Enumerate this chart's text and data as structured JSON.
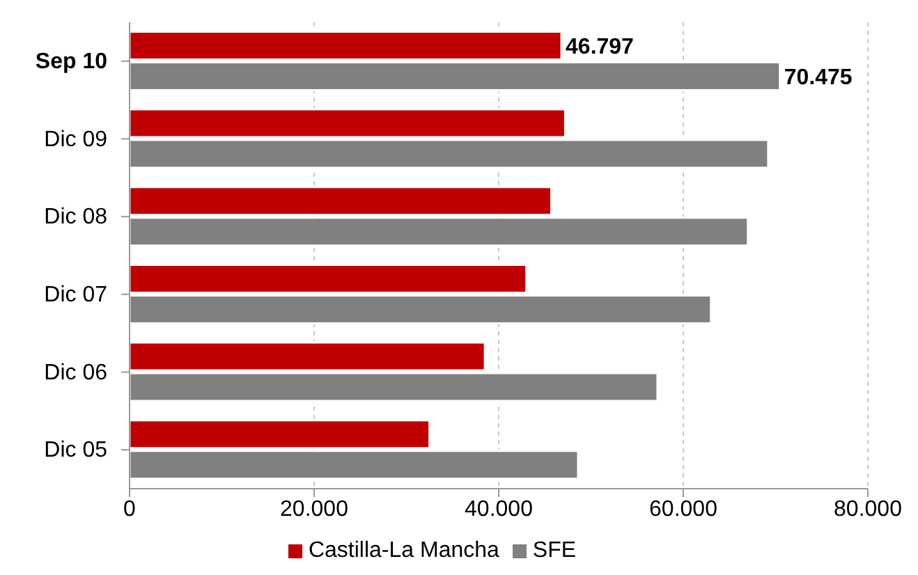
{
  "chart_data": {
    "type": "bar",
    "orientation": "horizontal",
    "categories": [
      "Sep 10",
      "Dic 09",
      "Dic 08",
      "Dic 07",
      "Dic 06",
      "Dic 05"
    ],
    "series": [
      {
        "name": "Castilla-La Mancha",
        "color": "#c00000",
        "values": [
          46797,
          47200,
          45700,
          43000,
          38500,
          32500
        ],
        "value_labels": [
          "46.797",
          null,
          null,
          null,
          null,
          null
        ]
      },
      {
        "name": "SFE",
        "color": "#808080",
        "values": [
          70475,
          69200,
          67000,
          63000,
          57200,
          48600
        ],
        "value_labels": [
          "70.475",
          null,
          null,
          null,
          null,
          null
        ]
      }
    ],
    "xlim": [
      0,
      80000
    ],
    "xticks": [
      {
        "value": 0,
        "label": "0"
      },
      {
        "value": 20000,
        "label": "20.000"
      },
      {
        "value": 40000,
        "label": "40.000"
      },
      {
        "value": 60000,
        "label": "60.000"
      },
      {
        "value": 80000,
        "label": "80.000"
      }
    ],
    "grid": "x",
    "legend": "bottom"
  }
}
